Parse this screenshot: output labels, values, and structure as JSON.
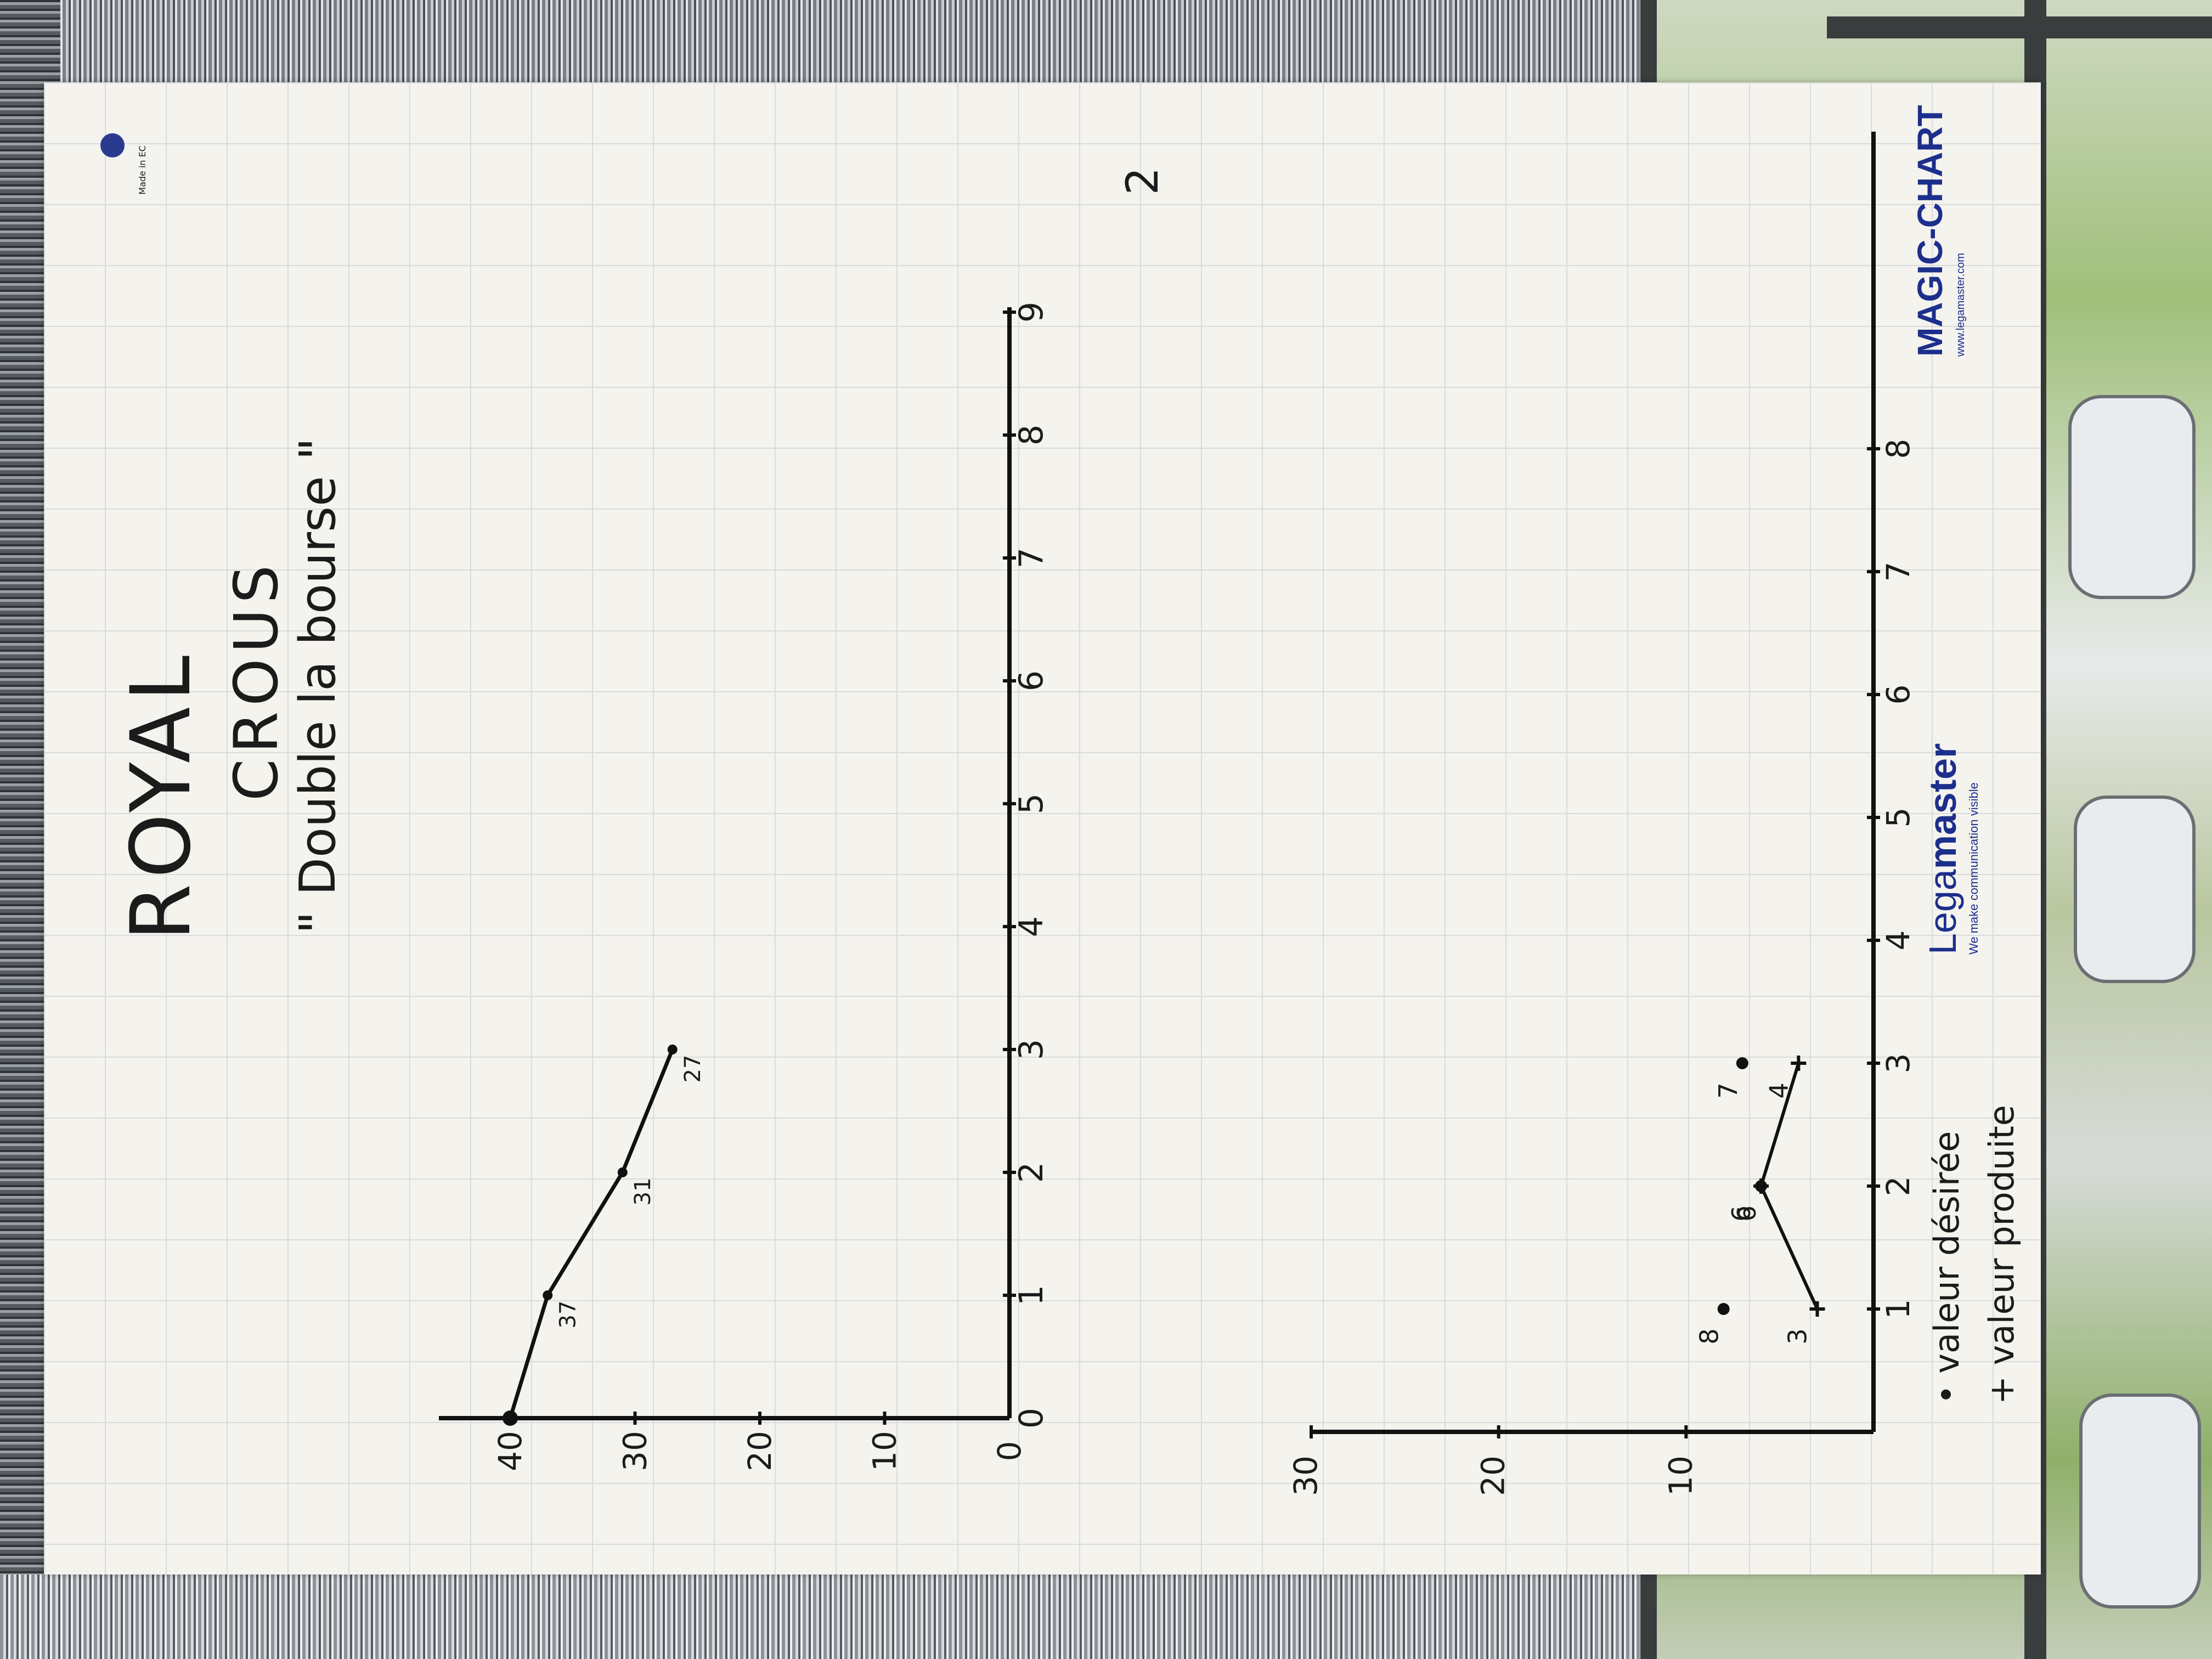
{
  "sheet_number": "2",
  "title_line1": "ROYAL",
  "title_line2": "CROUS",
  "subtitle": "\" Double la bourse \"",
  "brand": {
    "logo_prefix": "Lega",
    "logo_suffix": "master",
    "tagline": "We make communication visible",
    "product": "MAGIC-CHART",
    "url": "www.legamaster.com",
    "made_in": "Made in EC"
  },
  "chart_data": [
    {
      "type": "line",
      "x_ticks": [
        "0",
        "1",
        "2",
        "3",
        "4",
        "5",
        "6",
        "7",
        "8",
        "9"
      ],
      "y_ticks": [
        "0",
        "10",
        "20",
        "30",
        "40"
      ],
      "ylim": [
        0,
        40
      ],
      "series": [
        {
          "x": [
            0,
            1,
            2,
            3
          ],
          "y": [
            40,
            37,
            31,
            27
          ],
          "labels": [
            "",
            "37",
            "31",
            "27"
          ]
        }
      ]
    },
    {
      "type": "scatter",
      "x_ticks": [
        "1",
        "2",
        "3",
        "4",
        "5",
        "6",
        "7",
        "8"
      ],
      "y_ticks": [
        "10",
        "20",
        "30"
      ],
      "ylim": [
        0,
        30
      ],
      "series": [
        {
          "name": "valeur désirée",
          "marker": "dot",
          "x": [
            1,
            2,
            3
          ],
          "y": [
            8,
            6,
            7
          ]
        },
        {
          "name": "valeur produite",
          "marker": "plus",
          "x": [
            1,
            2,
            3
          ],
          "y": [
            3,
            6,
            4
          ]
        }
      ]
    }
  ],
  "legend": [
    "• valeur désirée",
    "+ valeur produite"
  ]
}
